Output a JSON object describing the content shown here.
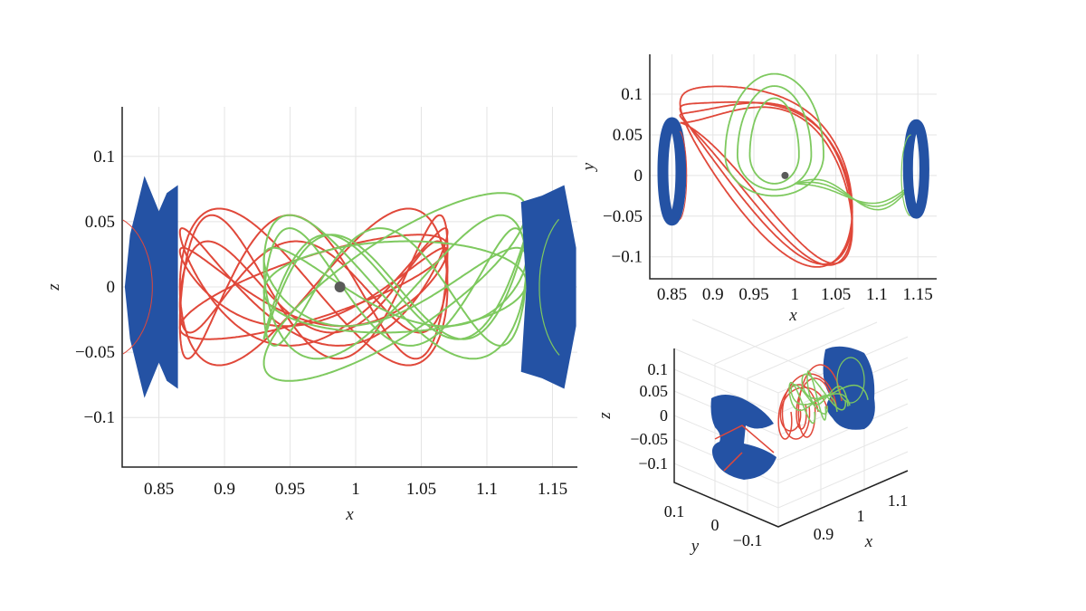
{
  "chart_data": [
    {
      "type": "line",
      "panel": "main x-z projection",
      "xlabel": "x",
      "ylabel": "z",
      "xlim": [
        0.822,
        1.169
      ],
      "ylim": [
        -0.138,
        0.138
      ],
      "xticks": [
        0.85,
        0.9,
        0.95,
        1,
        1.05,
        1.1,
        1.15
      ],
      "xtick_labels": [
        "0.85",
        "0.9",
        "0.95",
        "1",
        "1.05",
        "1.1",
        "1.15"
      ],
      "yticks": [
        0.1,
        0.05,
        0,
        -0.05,
        -0.1
      ],
      "ytick_labels": [
        "0.1",
        "0.05",
        "0",
        "−0.05",
        "−0.1"
      ],
      "grid": true,
      "marker_point": {
        "x": 0.988,
        "y": 0,
        "color": "#5a5a5a"
      },
      "colors": {
        "blue_regions": "#2452a4",
        "red_trajectories": "#e0483a",
        "green_trajectories": "#7ec95f",
        "grid": "#e4e4e4"
      }
    },
    {
      "type": "line",
      "panel": "x-y projection",
      "xlabel": "x",
      "ylabel": "y",
      "xlim": [
        0.823,
        1.173
      ],
      "ylim": [
        -0.127,
        0.149
      ],
      "xticks": [
        0.85,
        0.9,
        0.95,
        1,
        1.05,
        1.1,
        1.15
      ],
      "xtick_labels": [
        "0.85",
        "0.9",
        "0.95",
        "1",
        "1.05",
        "1.1",
        "1.15"
      ],
      "yticks": [
        0.1,
        0.05,
        0,
        -0.05,
        -0.1
      ],
      "ytick_labels": [
        "0.1",
        "0.05",
        "0",
        "−0.05",
        "−0.1"
      ],
      "grid": true,
      "marker_point": {
        "x": 0.988,
        "y": 0,
        "color": "#5a5a5a"
      }
    },
    {
      "type": "line",
      "panel": "3D view",
      "xlabel": "x",
      "ylabel": "y",
      "zlabel": "z",
      "xtick_labels": [
        "0.9",
        "1",
        "1.1"
      ],
      "ytick_labels": [
        "0.1",
        "0",
        "−0.1"
      ],
      "ztick_labels": [
        "0.1",
        "0.05",
        "0",
        "−0.05",
        "−0.1"
      ],
      "grid": true
    }
  ]
}
